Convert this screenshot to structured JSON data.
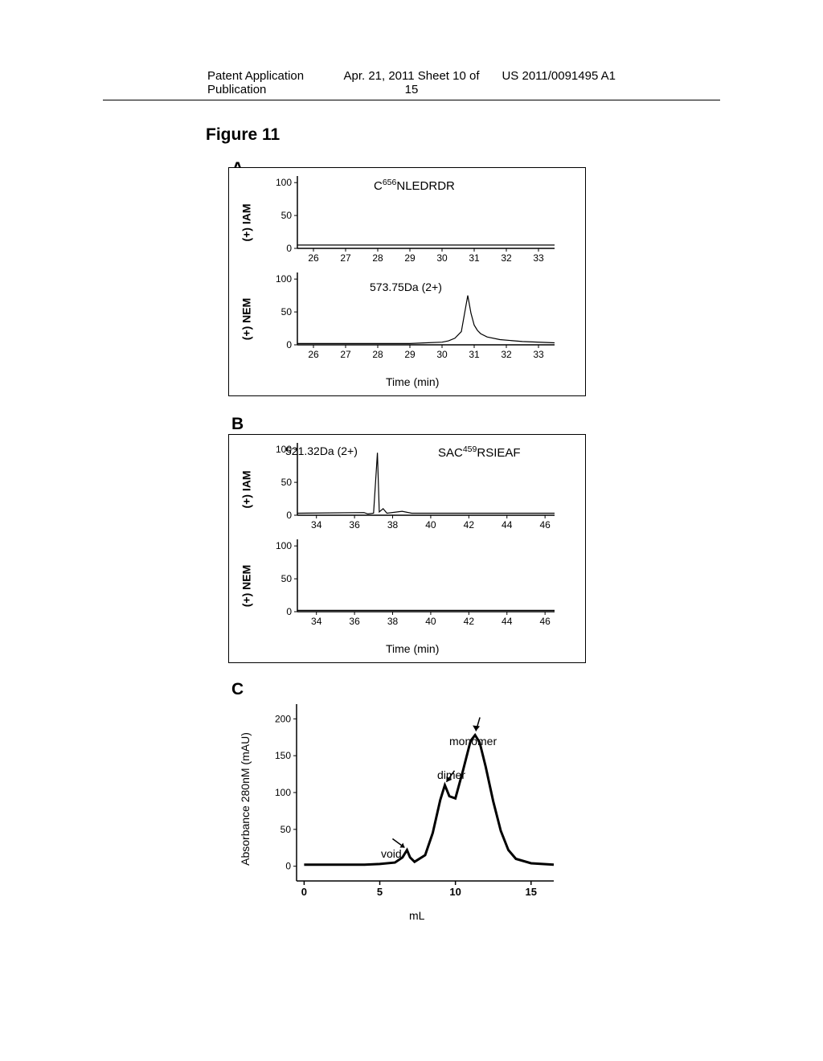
{
  "header": {
    "left": "Patent Application Publication",
    "center": "Apr. 21, 2011  Sheet 10 of 15",
    "right": "US 2011/0091495 A1"
  },
  "figure_title": "Figure 11",
  "panel_a": {
    "label": "A",
    "title_seq": "C",
    "title_sup": "656",
    "title_rest": "NLEDRDR",
    "sub1_ylabel": "(+) IAM",
    "sub2_ylabel": "(+) NEM",
    "sub2_anno": "573.75Da (2+)",
    "xlabel": "Time (min)",
    "xticks": [
      26,
      27,
      28,
      29,
      30,
      31,
      32,
      33
    ],
    "yticks": [
      0,
      50,
      100
    ],
    "xlim": [
      25.5,
      33.5
    ],
    "ylim": [
      0,
      110
    ],
    "sub1_line": [
      [
        25.5,
        5
      ],
      [
        33.5,
        5
      ]
    ],
    "sub2_line": [
      [
        25.5,
        2
      ],
      [
        29,
        2
      ],
      [
        29.5,
        3
      ],
      [
        30,
        4
      ],
      [
        30.2,
        6
      ],
      [
        30.4,
        10
      ],
      [
        30.6,
        20
      ],
      [
        30.8,
        75
      ],
      [
        30.9,
        48
      ],
      [
        31.0,
        30
      ],
      [
        31.1,
        22
      ],
      [
        31.2,
        17
      ],
      [
        31.4,
        12
      ],
      [
        31.8,
        8
      ],
      [
        32.5,
        5
      ],
      [
        33.5,
        3
      ]
    ],
    "colors": {
      "axis": "#000000",
      "line": "#000000",
      "text": "#000000"
    }
  },
  "panel_b": {
    "label": "B",
    "title_seq": "SAC",
    "title_sup": "459",
    "title_rest": "RSIEAF",
    "sub1_ylabel": "(+) IAM",
    "sub2_ylabel": "(+) NEM",
    "sub1_anno": "521.32Da (2+)",
    "xlabel": "Time (min)",
    "xticks": [
      34,
      36,
      38,
      40,
      42,
      44,
      46
    ],
    "yticks": [
      0,
      50,
      100
    ],
    "xlim": [
      33,
      46.5
    ],
    "ylim": [
      0,
      110
    ],
    "sub1_line": [
      [
        33,
        3
      ],
      [
        36.5,
        4
      ],
      [
        36.7,
        2
      ],
      [
        37,
        3
      ],
      [
        37.2,
        95
      ],
      [
        37.3,
        5
      ],
      [
        37.5,
        10
      ],
      [
        37.7,
        3
      ],
      [
        38.5,
        6
      ],
      [
        39,
        3
      ],
      [
        46.5,
        3
      ]
    ],
    "sub2_line": [
      [
        33,
        2
      ],
      [
        46.5,
        2
      ]
    ],
    "colors": {
      "axis": "#000000",
      "line": "#000000",
      "text": "#000000"
    }
  },
  "panel_c": {
    "label": "C",
    "ylabel": "Absorbance 280nM (mAU)",
    "xlabel": "mL",
    "xticks": [
      0,
      5,
      10,
      15
    ],
    "yticks": [
      0,
      50,
      100,
      150,
      200
    ],
    "xlim": [
      -0.5,
      16.5
    ],
    "ylim": [
      -20,
      220
    ],
    "line": [
      [
        0,
        2
      ],
      [
        4,
        2
      ],
      [
        5,
        3
      ],
      [
        6,
        5
      ],
      [
        6.5,
        12
      ],
      [
        6.8,
        22
      ],
      [
        7.0,
        12
      ],
      [
        7.3,
        6
      ],
      [
        8,
        15
      ],
      [
        8.5,
        45
      ],
      [
        9,
        90
      ],
      [
        9.3,
        110
      ],
      [
        9.6,
        95
      ],
      [
        10,
        92
      ],
      [
        10.5,
        130
      ],
      [
        11,
        170
      ],
      [
        11.3,
        178
      ],
      [
        11.6,
        168
      ],
      [
        12,
        135
      ],
      [
        12.5,
        88
      ],
      [
        13,
        48
      ],
      [
        13.5,
        22
      ],
      [
        14,
        10
      ],
      [
        15,
        4
      ],
      [
        16.5,
        2
      ]
    ],
    "anno_void": "void",
    "anno_dimer": "dimer",
    "anno_monomer": "monomer",
    "colors": {
      "axis": "#000000",
      "line": "#000000",
      "text": "#000000",
      "line_width": 3
    }
  }
}
